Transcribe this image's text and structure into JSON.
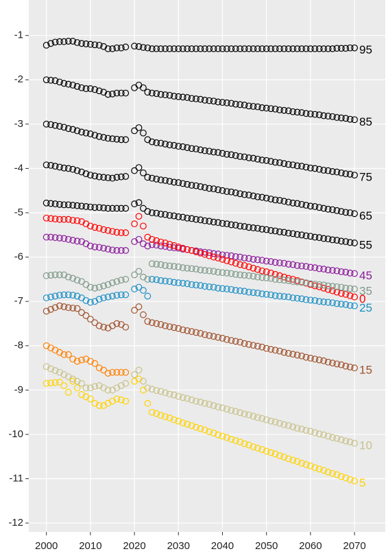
{
  "chart_data": {
    "type": "scatter",
    "x": [
      2000,
      2001,
      2002,
      2003,
      2004,
      2005,
      2006,
      2007,
      2008,
      2009,
      2010,
      2011,
      2012,
      2013,
      2014,
      2015,
      2016,
      2017,
      2018,
      2019,
      2020,
      2021,
      2022,
      2023,
      2024,
      2025,
      2026,
      2027,
      2028,
      2029,
      2030,
      2031,
      2032,
      2033,
      2034,
      2035,
      2036,
      2037,
      2038,
      2039,
      2040,
      2041,
      2042,
      2043,
      2044,
      2045,
      2046,
      2047,
      2048,
      2049,
      2050,
      2051,
      2052,
      2053,
      2054,
      2055,
      2056,
      2057,
      2058,
      2059,
      2060,
      2061,
      2062,
      2063,
      2064,
      2065,
      2066,
      2067,
      2068,
      2069,
      2070
    ],
    "xlim": [
      1996,
      2077
    ],
    "xticks": [
      2000,
      2010,
      2020,
      2030,
      2040,
      2050,
      2060,
      2070
    ],
    "ylim": [
      -12.2,
      -0.2
    ],
    "yticks": [
      -12,
      -11,
      -10,
      -9,
      -8,
      -7,
      -6,
      -5,
      -4,
      -3,
      -2,
      -1
    ],
    "grid": true,
    "series": [
      {
        "name": "95",
        "color": "#000000",
        "values": [
          -1.22,
          -1.18,
          -1.15,
          -1.14,
          -1.14,
          -1.13,
          -1.13,
          -1.16,
          -1.18,
          -1.19,
          -1.2,
          -1.21,
          -1.22,
          -1.25,
          -1.3,
          -1.3,
          -1.28,
          -1.28,
          -1.26,
          null,
          -1.24,
          -1.25,
          -1.27,
          -1.28,
          -1.3,
          -1.3,
          -1.3,
          -1.3,
          -1.3,
          -1.3,
          -1.3,
          -1.3,
          -1.3,
          -1.3,
          -1.3,
          -1.3,
          -1.3,
          -1.3,
          -1.3,
          -1.3,
          -1.3,
          -1.3,
          -1.3,
          -1.3,
          -1.3,
          -1.3,
          -1.3,
          -1.3,
          -1.3,
          -1.3,
          -1.3,
          -1.3,
          -1.3,
          -1.3,
          -1.3,
          -1.3,
          -1.3,
          -1.3,
          -1.3,
          -1.3,
          -1.3,
          -1.3,
          -1.3,
          -1.3,
          -1.3,
          -1.3,
          -1.29,
          -1.29,
          -1.29,
          -1.28,
          -1.28
        ]
      },
      {
        "name": "85",
        "color": "#000000",
        "values": [
          -2.0,
          -2.01,
          -2.02,
          -2.05,
          -2.08,
          -2.1,
          -2.12,
          -2.15,
          -2.18,
          -2.2,
          -2.2,
          -2.22,
          -2.25,
          -2.28,
          -2.33,
          -2.32,
          -2.3,
          -2.3,
          -2.3,
          null,
          -2.18,
          -2.12,
          -2.18,
          -2.28,
          -2.3,
          -2.31,
          -2.33,
          -2.34,
          -2.35,
          -2.37,
          -2.38,
          -2.39,
          -2.4,
          -2.42,
          -2.43,
          -2.44,
          -2.46,
          -2.47,
          -2.48,
          -2.5,
          -2.51,
          -2.52,
          -2.53,
          -2.55,
          -2.56,
          -2.57,
          -2.59,
          -2.6,
          -2.61,
          -2.63,
          -2.64,
          -2.65,
          -2.66,
          -2.68,
          -2.69,
          -2.7,
          -2.72,
          -2.73,
          -2.74,
          -2.76,
          -2.77,
          -2.78,
          -2.79,
          -2.81,
          -2.82,
          -2.83,
          -2.85,
          -2.86,
          -2.87,
          -2.89,
          -2.9
        ]
      },
      {
        "name": "75",
        "color": "#000000",
        "values": [
          -3.0,
          -3.01,
          -3.03,
          -3.05,
          -3.07,
          -3.1,
          -3.12,
          -3.15,
          -3.18,
          -3.2,
          -3.22,
          -3.25,
          -3.28,
          -3.3,
          -3.32,
          -3.33,
          -3.34,
          -3.35,
          -3.35,
          null,
          -3.15,
          -3.08,
          -3.2,
          -3.35,
          -3.4,
          -3.42,
          -3.43,
          -3.45,
          -3.47,
          -3.48,
          -3.5,
          -3.51,
          -3.53,
          -3.55,
          -3.56,
          -3.58,
          -3.6,
          -3.61,
          -3.63,
          -3.64,
          -3.66,
          -3.68,
          -3.69,
          -3.71,
          -3.73,
          -3.74,
          -3.76,
          -3.77,
          -3.79,
          -3.81,
          -3.82,
          -3.84,
          -3.86,
          -3.87,
          -3.89,
          -3.91,
          -3.92,
          -3.94,
          -3.95,
          -3.97,
          -3.99,
          -4.0,
          -4.02,
          -4.04,
          -4.05,
          -4.07,
          -4.08,
          -4.1,
          -4.12,
          -4.13,
          -4.15
        ]
      },
      {
        "name": "65",
        "color": "#000000",
        "values": [
          -3.92,
          -3.93,
          -3.95,
          -3.97,
          -3.99,
          -4.0,
          -4.02,
          -4.05,
          -4.08,
          -4.12,
          -4.15,
          -4.17,
          -4.19,
          -4.2,
          -4.21,
          -4.22,
          -4.2,
          -4.19,
          -4.18,
          null,
          -4.05,
          -3.98,
          -4.1,
          -4.2,
          -4.22,
          -4.24,
          -4.26,
          -4.27,
          -4.29,
          -4.31,
          -4.32,
          -4.34,
          -4.36,
          -4.38,
          -4.39,
          -4.41,
          -4.43,
          -4.45,
          -4.46,
          -4.48,
          -4.5,
          -4.52,
          -4.53,
          -4.55,
          -4.57,
          -4.59,
          -4.6,
          -4.62,
          -4.64,
          -4.65,
          -4.67,
          -4.69,
          -4.71,
          -4.72,
          -4.74,
          -4.76,
          -4.78,
          -4.79,
          -4.81,
          -4.83,
          -4.85,
          -4.86,
          -4.88,
          -4.9,
          -4.92,
          -4.93,
          -4.95,
          -4.97,
          -4.99,
          -5.0,
          -5.02
        ]
      },
      {
        "name": "55",
        "color": "#000000",
        "values": [
          -4.78,
          -4.79,
          -4.8,
          -4.81,
          -4.82,
          -4.82,
          -4.83,
          -4.84,
          -4.85,
          -4.86,
          -4.87,
          -4.88,
          -4.88,
          -4.89,
          -4.9,
          -4.9,
          -4.9,
          -4.9,
          -4.9,
          null,
          -4.8,
          -4.77,
          -4.9,
          -4.97,
          -5.0,
          -5.01,
          -5.03,
          -5.04,
          -5.06,
          -5.07,
          -5.09,
          -5.1,
          -5.12,
          -5.13,
          -5.15,
          -5.16,
          -5.18,
          -5.19,
          -5.21,
          -5.22,
          -5.24,
          -5.25,
          -5.27,
          -5.28,
          -5.3,
          -5.31,
          -5.33,
          -5.34,
          -5.35,
          -5.37,
          -5.38,
          -5.4,
          -5.41,
          -5.43,
          -5.44,
          -5.46,
          -5.47,
          -5.49,
          -5.5,
          -5.52,
          -5.53,
          -5.55,
          -5.56,
          -5.58,
          -5.59,
          -5.61,
          -5.62,
          -5.64,
          -5.65,
          -5.67,
          -5.68
        ]
      },
      {
        "name": "45",
        "color": "#8b1a9b",
        "values": [
          -5.55,
          -5.55,
          -5.56,
          -5.57,
          -5.58,
          -5.6,
          -5.62,
          -5.64,
          -5.65,
          -5.7,
          -5.75,
          -5.77,
          -5.78,
          -5.8,
          -5.82,
          -5.84,
          -5.85,
          -5.85,
          -5.85,
          null,
          -5.65,
          -5.6,
          -5.7,
          -5.75,
          -5.72,
          -5.73,
          -5.75,
          -5.76,
          -5.78,
          -5.79,
          -5.8,
          -5.82,
          -5.83,
          -5.85,
          -5.86,
          -5.88,
          -5.89,
          -5.9,
          -5.92,
          -5.93,
          -5.95,
          -5.96,
          -5.97,
          -5.99,
          -6.0,
          -6.02,
          -6.03,
          -6.05,
          -6.06,
          -6.07,
          -6.09,
          -6.1,
          -6.12,
          -6.13,
          -6.14,
          -6.16,
          -6.17,
          -6.19,
          -6.2,
          -6.21,
          -6.23,
          -6.24,
          -6.26,
          -6.27,
          -6.29,
          -6.3,
          -6.31,
          -6.33,
          -6.34,
          -6.36,
          -6.37
        ]
      },
      {
        "name": "0",
        "color": "#ff0000",
        "values": [
          -5.12,
          -5.13,
          -5.14,
          -5.15,
          -5.15,
          -5.15,
          -5.17,
          -5.18,
          -5.2,
          -5.25,
          -5.3,
          -5.33,
          -5.35,
          -5.38,
          -5.4,
          -5.42,
          -5.44,
          -5.45,
          -5.45,
          null,
          -5.25,
          -5.08,
          -5.3,
          -5.55,
          -5.6,
          -5.63,
          -5.66,
          -5.68,
          -5.71,
          -5.74,
          -5.77,
          -5.8,
          -5.83,
          -5.85,
          -5.88,
          -5.91,
          -5.94,
          -5.97,
          -6.0,
          -6.02,
          -6.05,
          -6.08,
          -6.11,
          -6.14,
          -6.17,
          -6.19,
          -6.22,
          -6.25,
          -6.28,
          -6.31,
          -6.33,
          -6.36,
          -6.39,
          -6.42,
          -6.45,
          -6.48,
          -6.5,
          -6.53,
          -6.56,
          -6.59,
          -6.62,
          -6.65,
          -6.67,
          -6.7,
          -6.73,
          -6.76,
          -6.79,
          -6.82,
          -6.84,
          -6.87,
          -6.9
        ]
      },
      {
        "name": "35",
        "color": "#7f9a8a",
        "values": [
          -6.42,
          -6.41,
          -6.4,
          -6.4,
          -6.4,
          -6.45,
          -6.48,
          -6.52,
          -6.55,
          -6.62,
          -6.68,
          -6.7,
          -6.68,
          -6.65,
          -6.62,
          -6.58,
          -6.55,
          -6.52,
          -6.5,
          null,
          -6.4,
          -6.32,
          -6.45,
          -6.5,
          -6.15,
          -6.16,
          -6.17,
          -6.19,
          -6.2,
          -6.21,
          -6.22,
          -6.24,
          -6.25,
          -6.26,
          -6.27,
          -6.29,
          -6.3,
          -6.31,
          -6.32,
          -6.34,
          -6.35,
          -6.36,
          -6.37,
          -6.39,
          -6.4,
          -6.41,
          -6.42,
          -6.43,
          -6.45,
          -6.46,
          -6.47,
          -6.48,
          -6.5,
          -6.51,
          -6.52,
          -6.53,
          -6.55,
          -6.56,
          -6.57,
          -6.58,
          -6.6,
          -6.61,
          -6.62,
          -6.63,
          -6.65,
          -6.66,
          -6.67,
          -6.68,
          -6.7,
          -6.71,
          -6.72
        ]
      },
      {
        "name": "25",
        "color": "#1b8fc6",
        "values": [
          -6.92,
          -6.9,
          -6.88,
          -6.86,
          -6.85,
          -6.85,
          -6.86,
          -6.88,
          -6.92,
          -6.98,
          -7.02,
          -7.0,
          -6.95,
          -6.92,
          -6.9,
          -6.88,
          -6.86,
          -6.85,
          -6.85,
          null,
          -6.72,
          -6.68,
          -6.75,
          -6.88,
          -6.5,
          -6.51,
          -6.53,
          -6.54,
          -6.55,
          -6.57,
          -6.58,
          -6.59,
          -6.6,
          -6.62,
          -6.63,
          -6.64,
          -6.66,
          -6.67,
          -6.68,
          -6.7,
          -6.71,
          -6.72,
          -6.73,
          -6.75,
          -6.76,
          -6.77,
          -6.79,
          -6.8,
          -6.81,
          -6.83,
          -6.84,
          -6.85,
          -6.87,
          -6.88,
          -6.89,
          -6.9,
          -6.92,
          -6.93,
          -6.94,
          -6.96,
          -6.97,
          -6.98,
          -7.0,
          -7.01,
          -7.02,
          -7.03,
          -7.05,
          -7.06,
          -7.07,
          -7.09,
          -7.1
        ]
      },
      {
        "name": "15",
        "color": "#a0522d",
        "values": [
          -7.22,
          -7.18,
          -7.14,
          -7.1,
          -7.12,
          -7.14,
          -7.15,
          -7.16,
          -7.25,
          -7.32,
          -7.4,
          -7.48,
          -7.55,
          -7.58,
          -7.6,
          -7.55,
          -7.5,
          -7.52,
          -7.58,
          null,
          -7.2,
          -7.12,
          -7.3,
          -7.45,
          -7.48,
          -7.5,
          -7.52,
          -7.55,
          -7.57,
          -7.59,
          -7.61,
          -7.64,
          -7.66,
          -7.68,
          -7.7,
          -7.72,
          -7.75,
          -7.77,
          -7.79,
          -7.81,
          -7.83,
          -7.86,
          -7.88,
          -7.9,
          -7.92,
          -7.95,
          -7.97,
          -7.99,
          -8.01,
          -8.03,
          -8.06,
          -8.08,
          -8.1,
          -8.12,
          -8.15,
          -8.17,
          -8.19,
          -8.21,
          -8.23,
          -8.26,
          -8.28,
          -8.3,
          -8.32,
          -8.34,
          -8.37,
          -8.39,
          -8.41,
          -8.43,
          -8.46,
          -8.48,
          -8.5
        ]
      },
      {
        "color": "#ff8000",
        "values": [
          -8.0,
          -8.05,
          -8.1,
          -8.15,
          -8.2,
          -8.2,
          -8.3,
          -8.35,
          -8.32,
          -8.3,
          -8.35,
          -8.4,
          -8.5,
          -8.55,
          -8.62,
          -8.6,
          -8.6,
          -8.6,
          -8.6,
          null,
          null,
          null,
          null,
          null,
          null,
          null,
          null,
          null,
          null,
          null,
          null,
          null,
          null,
          null,
          null,
          null,
          null,
          null,
          null,
          null,
          null,
          null,
          null,
          null,
          null,
          null,
          null,
          null,
          null,
          null,
          null,
          null,
          null,
          null,
          null,
          null,
          null,
          null,
          null,
          null,
          null,
          null,
          null,
          null,
          null,
          null,
          null,
          null,
          null,
          null,
          null
        ]
      },
      {
        "name": "10",
        "color": "#c8c28a",
        "values": [
          -8.47,
          -8.52,
          -8.56,
          -8.6,
          -8.65,
          -8.7,
          -8.75,
          -8.8,
          -8.85,
          -8.95,
          -8.95,
          -8.92,
          -8.9,
          -8.95,
          -9.0,
          -9.0,
          -8.95,
          -8.9,
          -8.85,
          null,
          -8.65,
          -8.55,
          -8.8,
          -8.95,
          -8.98,
          -9.01,
          -9.03,
          -9.06,
          -9.09,
          -9.11,
          -9.14,
          -9.17,
          -9.19,
          -9.22,
          -9.25,
          -9.27,
          -9.3,
          -9.32,
          -9.35,
          -9.38,
          -9.4,
          -9.43,
          -9.46,
          -9.48,
          -9.51,
          -9.54,
          -9.56,
          -9.59,
          -9.62,
          -9.64,
          -9.67,
          -9.7,
          -9.72,
          -9.75,
          -9.78,
          -9.8,
          -9.83,
          -9.86,
          -9.88,
          -9.91,
          -9.93,
          -9.96,
          -9.99,
          -10.01,
          -10.04,
          -10.07,
          -10.09,
          -10.12,
          -10.15,
          -10.17,
          -10.2
        ]
      },
      {
        "name": "5",
        "color": "#ffd300",
        "values": [
          -8.85,
          -8.84,
          -8.83,
          -8.82,
          -8.9,
          -9.05,
          -8.8,
          -8.95,
          -9.1,
          -9.15,
          -9.2,
          -9.3,
          -9.35,
          -9.35,
          -9.3,
          -9.25,
          -9.2,
          -9.22,
          -9.25,
          null,
          -8.8,
          -8.75,
          -9.0,
          -9.3,
          -9.5,
          -9.53,
          -9.57,
          -9.6,
          -9.63,
          -9.67,
          -9.7,
          -9.74,
          -9.77,
          -9.8,
          -9.84,
          -9.87,
          -9.9,
          -9.94,
          -9.97,
          -10.01,
          -10.04,
          -10.07,
          -10.11,
          -10.14,
          -10.17,
          -10.21,
          -10.24,
          -10.28,
          -10.31,
          -10.34,
          -10.38,
          -10.41,
          -10.44,
          -10.48,
          -10.51,
          -10.55,
          -10.58,
          -10.61,
          -10.65,
          -10.68,
          -10.71,
          -10.75,
          -10.78,
          -10.81,
          -10.85,
          -10.88,
          -10.91,
          -10.95,
          -10.98,
          -11.02,
          -11.05
        ]
      }
    ]
  }
}
